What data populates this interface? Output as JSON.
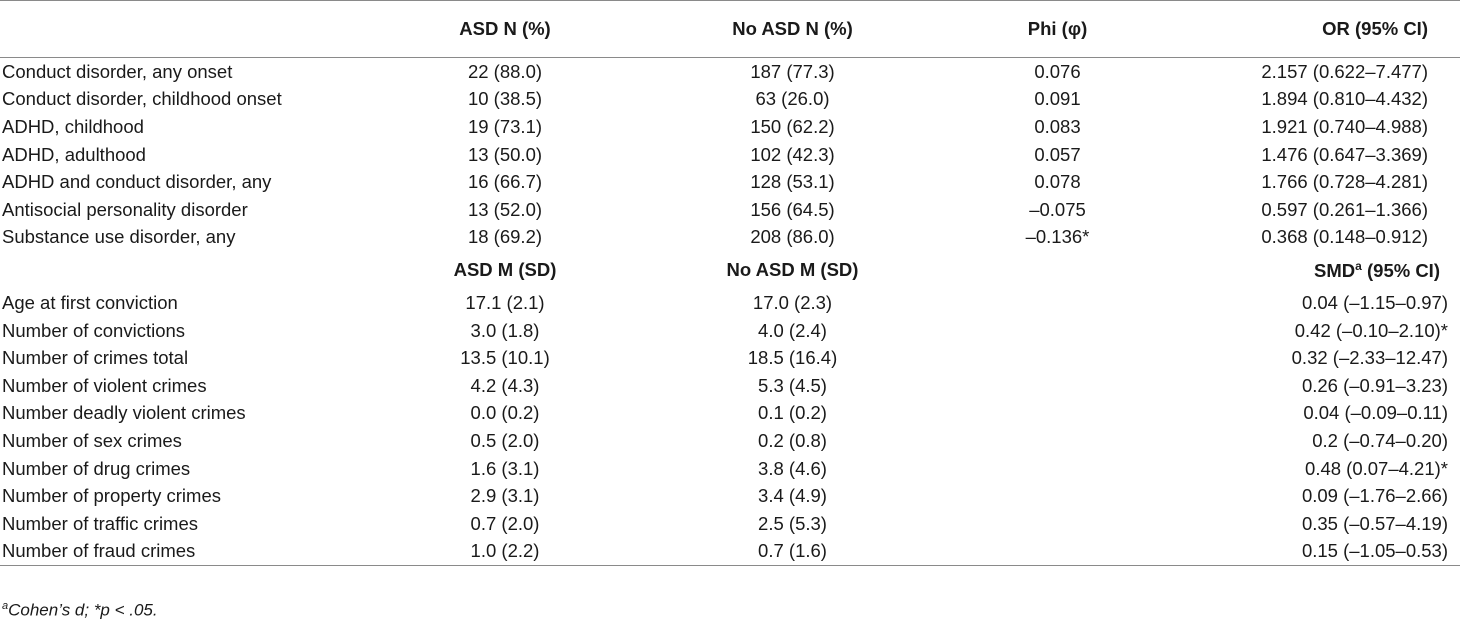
{
  "table": {
    "header1": {
      "label": "",
      "col1": "ASD N (%)",
      "col2": "No ASD N (%)",
      "col3": "Phi (φ)",
      "col4": "OR (95% CI)"
    },
    "rows1": [
      {
        "label": "Conduct disorder, any onset",
        "c1": "22 (88.0)",
        "c2": "187 (77.3)",
        "c3": "0.076",
        "c4": "2.157 (0.622–7.477)"
      },
      {
        "label": "Conduct disorder, childhood onset",
        "c1": "10 (38.5)",
        "c2": "63 (26.0)",
        "c3": "0.091",
        "c4": "1.894 (0.810–4.432)"
      },
      {
        "label": "ADHD, childhood",
        "c1": "19 (73.1)",
        "c2": "150 (62.2)",
        "c3": "0.083",
        "c4": "1.921 (0.740–4.988)"
      },
      {
        "label": "ADHD, adulthood",
        "c1": "13 (50.0)",
        "c2": "102 (42.3)",
        "c3": "0.057",
        "c4": "1.476 (0.647–3.369)"
      },
      {
        "label": "ADHD and conduct disorder, any",
        "c1": "16 (66.7)",
        "c2": "128 (53.1)",
        "c3": "0.078",
        "c4": "1.766 (0.728–4.281)"
      },
      {
        "label": "Antisocial personality disorder",
        "c1": "13 (52.0)",
        "c2": "156 (64.5)",
        "c3": "–0.075",
        "c4": "0.597 (0.261–1.366)"
      },
      {
        "label": "Substance use disorder, any",
        "c1": "18 (69.2)",
        "c2": "208 (86.0)",
        "c3": "–0.136*",
        "c4": "0.368 (0.148–0.912)"
      }
    ],
    "header2": {
      "col1": "ASD M (SD)",
      "col2": "No ASD M (SD)",
      "col3": "",
      "col4_main": "SMD",
      "col4_sup": "a",
      "col4_rest": " (95% CI)"
    },
    "rows2": [
      {
        "label": "Age at first conviction",
        "c1": "17.1 (2.1)",
        "c2": "17.0 (2.3)",
        "c4": "0.04 (–1.15–0.97)"
      },
      {
        "label": "Number of convictions",
        "c1": "3.0 (1.8)",
        "c2": "4.0 (2.4)",
        "c4": "0.42 (–0.10–2.10)*"
      },
      {
        "label": "Number of crimes total",
        "c1": "13.5 (10.1)",
        "c2": "18.5 (16.4)",
        "c4": "0.32 (–2.33–12.47)"
      },
      {
        "label": "Number of violent crimes",
        "c1": "4.2 (4.3)",
        "c2": "5.3 (4.5)",
        "c4": "0.26 (–0.91–3.23)"
      },
      {
        "label": "Number deadly violent crimes",
        "c1": "0.0 (0.2)",
        "c2": "0.1 (0.2)",
        "c4": "0.04 (–0.09–0.11)"
      },
      {
        "label": "Number of sex crimes",
        "c1": "0.5 (2.0)",
        "c2": "0.2 (0.8)",
        "c4": "0.2 (–0.74–0.20)"
      },
      {
        "label": "Number of drug crimes",
        "c1": "1.6 (3.1)",
        "c2": "3.8 (4.6)",
        "c4": "0.48 (0.07–4.21)*"
      },
      {
        "label": "Number of property crimes",
        "c1": "2.9 (3.1)",
        "c2": "3.4 (4.9)",
        "c4": "0.09 (–1.76–2.66)"
      },
      {
        "label": "Number of traffic crimes",
        "c1": "0.7 (2.0)",
        "c2": "2.5 (5.3)",
        "c4": "0.35 (–0.57–4.19)"
      },
      {
        "label": "Number of fraud crimes",
        "c1": "1.0 (2.2)",
        "c2": "0.7 (1.6)",
        "c4": "0.15 (–1.05–0.53)"
      }
    ]
  },
  "note": {
    "sup": "a",
    "text": "Cohen’s d; *p < .05."
  }
}
